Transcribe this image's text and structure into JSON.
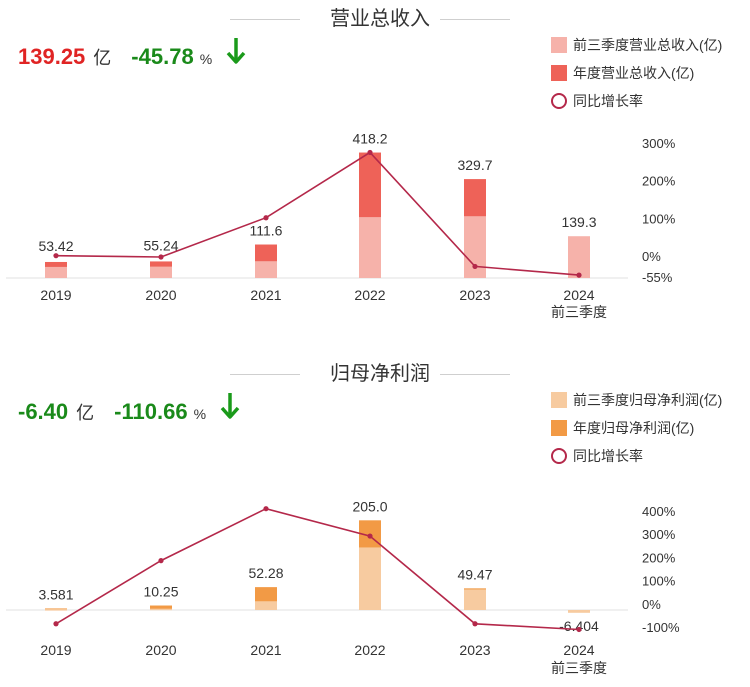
{
  "chart_data": [
    {
      "type": "bar",
      "title": "营业总收入",
      "headline": {
        "value": "139.25",
        "unit": "亿",
        "pct": "-45.78",
        "pct_unit": "%",
        "value_color": "#e02424",
        "pct_color": "#1a8a1a"
      },
      "categories": [
        "2019",
        "2020",
        "2021",
        "2022",
        "2023",
        "2024"
      ],
      "category_sublabels": [
        "",
        "",
        "",
        "",
        "",
        "前三季度"
      ],
      "series": [
        {
          "name": "前三季度营业总收入(亿)",
          "color": "#f6b2aa",
          "values": [
            37,
            38,
            56,
            203,
            206,
            139.3
          ]
        },
        {
          "name": "年度营业总收入(亿)",
          "color": "#ee6258",
          "values": [
            53.42,
            55.24,
            111.6,
            418.2,
            329.7,
            null
          ]
        },
        {
          "name": "同比增长率",
          "color": "#b4284a",
          "values": [
            1.5,
            -2.0,
            102,
            275,
            -27,
            -50
          ]
        }
      ],
      "data_labels": [
        "53.42",
        "55.24",
        "111.6",
        "418.2",
        "329.7",
        "139.3"
      ],
      "right_axis_ticks": [
        "300%",
        "200%",
        "100%",
        "0%",
        "-55%"
      ],
      "right_axis_values": [
        300,
        200,
        100,
        0,
        -55
      ],
      "bar_ylim": [
        0,
        500
      ],
      "rate_ylim": [
        -55,
        300
      ]
    },
    {
      "type": "bar",
      "title": "归母净利润",
      "headline": {
        "value": "-6.40",
        "unit": "亿",
        "pct": "-110.66",
        "pct_unit": "%",
        "value_color": "#1a8a1a",
        "pct_color": "#1a8a1a"
      },
      "categories": [
        "2019",
        "2020",
        "2021",
        "2022",
        "2023",
        "2024"
      ],
      "category_sublabels": [
        "",
        "",
        "",
        "",
        "",
        "前三季度"
      ],
      "series": [
        {
          "name": "前三季度归母净利润(亿)",
          "color": "#f7cba0",
          "values": [
            2,
            3,
            20,
            143,
            47,
            -6.404
          ]
        },
        {
          "name": "年度归母净利润(亿)",
          "color": "#f29a45",
          "values": [
            3.581,
            10.25,
            52.28,
            205.0,
            49.47,
            null
          ]
        },
        {
          "name": "同比增长率",
          "color": "#b4284a",
          "values": [
            -86,
            186,
            410,
            292,
            -86,
            -110.66
          ]
        }
      ],
      "data_labels": [
        "3.581",
        "10.25",
        "52.28",
        "205.0",
        "49.47",
        "-6.404"
      ],
      "right_axis_ticks": [
        "400%",
        "300%",
        "200%",
        "100%",
        "0%",
        "-100%"
      ],
      "right_axis_values": [
        400,
        300,
        200,
        100,
        0,
        -100
      ],
      "bar_ylim": [
        -10,
        240
      ],
      "rate_ylim": [
        -100,
        400
      ]
    }
  ]
}
